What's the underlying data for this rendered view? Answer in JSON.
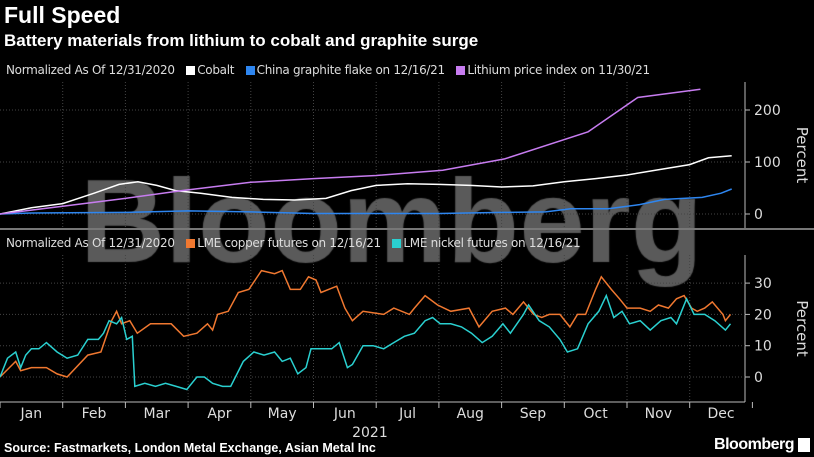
{
  "header": {
    "title": "Full Speed",
    "subtitle": "Battery materials from lithium to cobalt and graphite surge"
  },
  "footer": {
    "source": "Source: Fastmarkets, London Metal Exchange, Asian Metal Inc",
    "brand": "Bloomberg",
    "watermark": "Bloomberg"
  },
  "chart_data": [
    {
      "type": "line",
      "legend_prefix": "Normalized As Of 12/31/2020",
      "ylabel": "Percent",
      "ylim": [
        -25,
        260
      ],
      "yticks": [
        0,
        100,
        200
      ],
      "xunit": "month index (0=Jan 1, 2021)",
      "grid": true,
      "series": [
        {
          "name": "Cobalt",
          "color": "#ffffff",
          "x": [
            0,
            0.5,
            1,
            1.5,
            1.9,
            2.2,
            2.5,
            2.8,
            3.2,
            3.7,
            4.2,
            4.7,
            5.2,
            5.6,
            6,
            6.5,
            7,
            7.5,
            8,
            8.5,
            9,
            9.5,
            10,
            10.5,
            11,
            11.3,
            11.67
          ],
          "y": [
            0,
            12,
            20,
            40,
            57,
            62,
            55,
            45,
            40,
            32,
            28,
            27,
            30,
            45,
            55,
            58,
            57,
            55,
            52,
            54,
            62,
            68,
            75,
            85,
            95,
            108,
            112
          ]
        },
        {
          "name": "China graphite flake on 12/16/21",
          "color": "#2e86f0",
          "x": [
            0,
            0.5,
            2,
            3,
            4,
            5,
            6,
            7,
            8,
            8.7,
            9.1,
            9.7,
            10.2,
            10.6,
            11.2,
            11.5,
            11.67
          ],
          "y": [
            0,
            2,
            3,
            6,
            4,
            1,
            1,
            1,
            3,
            4,
            10,
            10,
            18,
            28,
            32,
            40,
            48
          ]
        },
        {
          "name": "Lithium price index on 11/30/21",
          "color": "#c77cf0",
          "x": [
            0,
            1,
            2,
            2.9,
            4,
            5,
            6,
            7.06,
            8.05,
            9.38,
            10.17,
            11.17
          ],
          "y": [
            0,
            15,
            30,
            45,
            61,
            68,
            74,
            84,
            106,
            158,
            224,
            240
          ]
        }
      ]
    },
    {
      "type": "line",
      "legend_prefix": "Normalized As Of 12/31/2020",
      "ylabel": "Percent",
      "ylim": [
        -8,
        38
      ],
      "yticks": [
        0,
        10,
        20,
        30
      ],
      "xlabel": "2021",
      "xticklabels": [
        "Jan",
        "Feb",
        "Mar",
        "Apr",
        "May",
        "Jun",
        "Jul",
        "Aug",
        "Sep",
        "Oct",
        "Nov",
        "Dec"
      ],
      "grid": true,
      "series": [
        {
          "name": "LME copper futures on 12/16/21",
          "color": "#f07830",
          "x": [
            0,
            0.25,
            0.33,
            0.5,
            0.74,
            0.91,
            1.07,
            1.4,
            1.61,
            1.78,
            1.86,
            1.94,
            2.07,
            2.19,
            2.4,
            2.73,
            2.93,
            3.14,
            3.31,
            3.39,
            3.47,
            3.64,
            3.8,
            3.97,
            4.17,
            4.38,
            4.5,
            4.63,
            4.79,
            4.92,
            5.04,
            5.12,
            5.37,
            5.5,
            5.62,
            5.79,
            6.12,
            6.28,
            6.53,
            6.61,
            6.78,
            6.98,
            7.19,
            7.48,
            7.64,
            7.85,
            8.06,
            8.18,
            8.35,
            8.51,
            8.64,
            8.76,
            8.93,
            9.09,
            9.21,
            9.34,
            9.5,
            9.59,
            9.75,
            9.88,
            10,
            10.21,
            10.37,
            10.5,
            10.66,
            10.79,
            10.91,
            11.03,
            11.12,
            11.24,
            11.36,
            11.53,
            11.57,
            11.65
          ],
          "y": [
            0,
            5,
            2,
            3,
            3,
            1,
            0,
            7,
            8,
            18,
            21,
            17,
            18,
            14,
            17,
            17,
            13,
            14,
            17,
            15,
            20,
            21,
            27,
            28,
            34,
            33,
            34,
            28,
            28,
            32,
            31,
            27,
            29,
            22,
            18,
            21,
            20,
            22,
            20,
            22,
            26,
            23,
            21,
            22,
            16,
            21,
            22,
            20,
            24,
            20,
            19,
            20,
            20,
            16,
            20,
            20,
            28,
            32,
            28,
            25,
            22,
            22,
            21,
            23,
            22,
            25,
            26,
            22,
            21,
            22,
            24,
            20,
            18,
            20
          ]
        },
        {
          "name": "LME nickel futures on 12/16/21",
          "color": "#2ad0d0",
          "x": [
            0,
            0.12,
            0.25,
            0.33,
            0.41,
            0.5,
            0.62,
            0.74,
            0.91,
            1.07,
            1.24,
            1.4,
            1.57,
            1.65,
            1.74,
            1.86,
            1.94,
            2.02,
            2.11,
            2.15,
            2.31,
            2.48,
            2.64,
            2.81,
            2.98,
            3.14,
            3.26,
            3.39,
            3.55,
            3.68,
            3.88,
            4.05,
            4.21,
            4.38,
            4.5,
            4.63,
            4.75,
            4.88,
            4.96,
            5.12,
            5.29,
            5.41,
            5.54,
            5.62,
            5.79,
            5.95,
            6.12,
            6.28,
            6.45,
            6.61,
            6.78,
            6.9,
            7.02,
            7.19,
            7.36,
            7.52,
            7.69,
            7.85,
            8.02,
            8.14,
            8.35,
            8.43,
            8.6,
            8.76,
            8.93,
            9.05,
            9.21,
            9.38,
            9.55,
            9.67,
            9.79,
            9.92,
            10.04,
            10.21,
            10.37,
            10.54,
            10.7,
            10.79,
            10.95,
            11.07,
            11.24,
            11.4,
            11.57,
            11.65
          ],
          "y": [
            0,
            6,
            8,
            3,
            7,
            9,
            9,
            11,
            8,
            6,
            7,
            12,
            12,
            14,
            18,
            17,
            19,
            12,
            13,
            -3,
            -2,
            -3,
            -2,
            -3,
            -4,
            0,
            0,
            -2,
            -3,
            -3,
            5,
            8,
            7,
            8,
            5,
            6,
            1,
            3,
            9,
            9,
            9,
            11,
            3,
            4,
            10,
            10,
            9,
            11,
            13,
            14,
            18,
            19,
            17,
            17,
            16,
            14,
            11,
            13,
            17,
            14,
            20,
            23,
            18,
            16,
            12,
            8,
            9,
            17,
            21,
            26,
            19,
            21,
            17,
            18,
            15,
            18,
            19,
            17,
            25,
            20,
            20,
            18,
            15,
            17
          ]
        }
      ]
    }
  ]
}
